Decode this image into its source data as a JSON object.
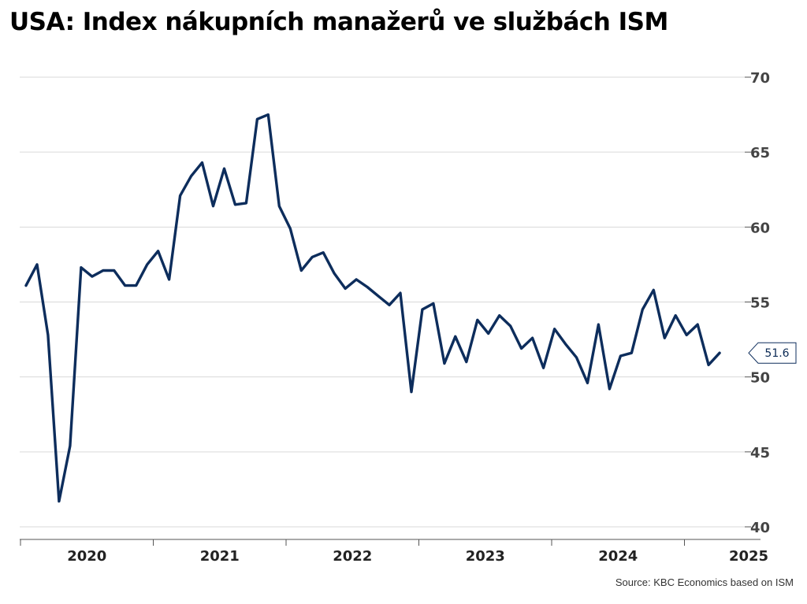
{
  "title": "USA: Index nákupních manažerů ve službách ISM",
  "source": "Source: KBC Economics based on ISM",
  "colors": {
    "line": "#0d2d5c",
    "grid": "#d9d9d9",
    "axis": "#555555"
  },
  "chart_data": {
    "type": "line",
    "title": "USA: Index nákupních manažerů ve službách ISM",
    "xlabel": "",
    "ylabel": "",
    "ylim": [
      40,
      70
    ],
    "y_ticks": [
      "40",
      "45",
      "50",
      "55",
      "60",
      "65",
      "70"
    ],
    "x_ticks": [
      "2020",
      "2021",
      "2022",
      "2023",
      "2024",
      "2025"
    ],
    "grid": true,
    "last_value_label": "51.6",
    "series": [
      {
        "values": [
          56.1,
          57.5,
          52.8,
          41.7,
          45.4,
          57.3,
          56.7,
          57.1,
          57.1,
          56.1,
          56.1,
          57.5,
          58.4,
          56.5,
          62.1,
          63.4,
          64.3,
          61.4,
          63.9,
          61.5,
          61.6,
          67.2,
          67.5,
          61.4,
          59.9,
          57.1,
          58.0,
          58.3,
          56.9,
          55.9,
          56.5,
          56.0,
          55.4,
          54.8,
          55.6,
          49.0,
          54.5,
          54.9,
          50.9,
          52.7,
          51.0,
          53.8,
          52.9,
          54.1,
          53.4,
          51.9,
          52.6,
          50.6,
          53.2,
          52.2,
          51.3,
          49.6,
          53.5,
          49.2,
          51.4,
          51.6,
          54.5,
          55.8,
          52.6,
          54.1,
          52.8,
          53.5,
          50.8,
          51.6
        ]
      }
    ]
  }
}
